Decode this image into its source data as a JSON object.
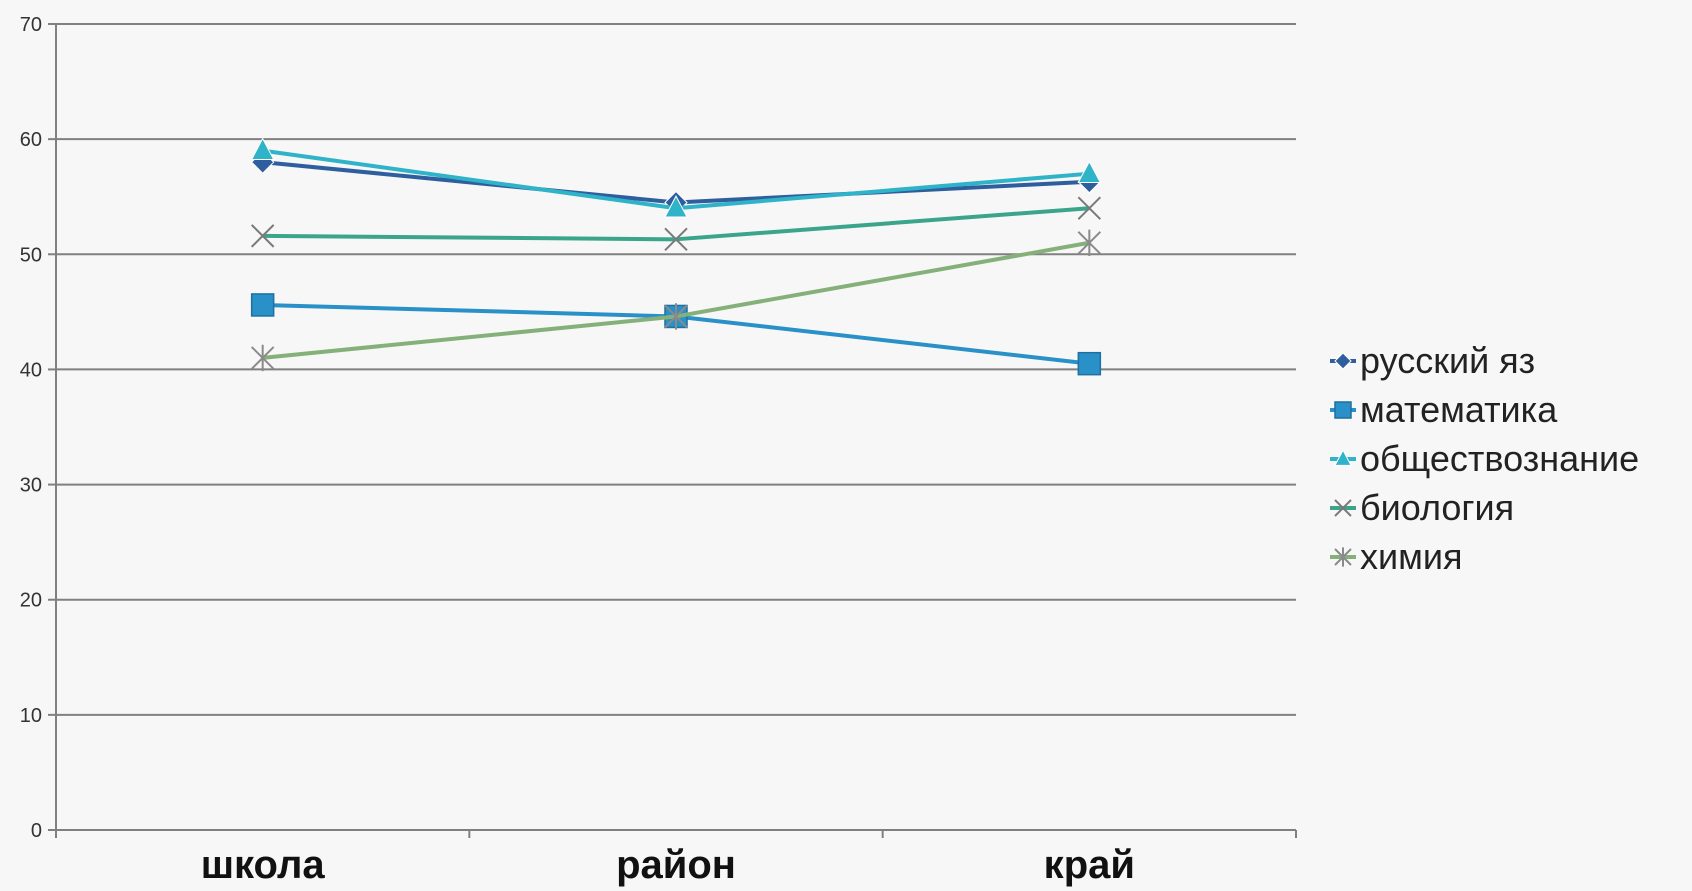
{
  "chart_data": {
    "type": "line",
    "categories": [
      "школа",
      "район",
      "край"
    ],
    "ylim": [
      0,
      70
    ],
    "yticks": [
      0,
      10,
      20,
      30,
      40,
      50,
      60,
      70
    ],
    "grid": true,
    "legend": "right",
    "series": [
      {
        "name": "русский яз",
        "values": [
          58.0,
          54.5,
          56.3
        ],
        "color": "#2e5e9e",
        "marker": "diamond"
      },
      {
        "name": "математика",
        "values": [
          45.6,
          44.6,
          40.5
        ],
        "color": "#2a90c8",
        "marker": "square"
      },
      {
        "name": "обществознание",
        "values": [
          59.0,
          54.0,
          57.0
        ],
        "color": "#2fb3c8",
        "marker": "triangle"
      },
      {
        "name": "биология",
        "values": [
          51.6,
          51.3,
          54.0
        ],
        "color": "#3aa58a",
        "marker": "x"
      },
      {
        "name": "химия",
        "values": [
          41.0,
          44.6,
          51.0
        ],
        "color": "#86b07a",
        "marker": "star"
      }
    ]
  }
}
